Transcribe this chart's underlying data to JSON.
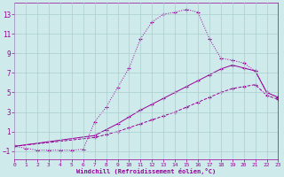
{
  "background_color": "#ceeaea",
  "grid_color": "#aacece",
  "line_color": "#990099",
  "xlim": [
    0,
    23
  ],
  "ylim": [
    -1.8,
    14.2
  ],
  "xticks": [
    0,
    1,
    2,
    3,
    4,
    5,
    6,
    7,
    8,
    9,
    10,
    11,
    12,
    13,
    14,
    15,
    16,
    17,
    18,
    19,
    20,
    21,
    22,
    23
  ],
  "yticks": [
    -1,
    1,
    3,
    5,
    7,
    9,
    11,
    13
  ],
  "xlabel": "Windchill (Refroidissement éolien,°C)",
  "line1_x": [
    0,
    1,
    2,
    3,
    4,
    5,
    6,
    7,
    8,
    9,
    10,
    11,
    12,
    13,
    14,
    15,
    16,
    17,
    18,
    19,
    20,
    21,
    22,
    23
  ],
  "line1_y": [
    -0.5,
    -0.7,
    -0.9,
    -0.9,
    -0.9,
    -0.9,
    -0.8,
    2.0,
    3.5,
    5.5,
    7.5,
    10.5,
    12.2,
    13.0,
    13.2,
    13.5,
    13.2,
    10.5,
    8.5,
    8.3,
    8.0,
    7.2,
    5.0,
    4.5
  ],
  "line2_x": [
    0,
    7,
    8,
    9,
    10,
    11,
    12,
    13,
    14,
    15,
    16,
    17,
    18,
    19,
    20,
    21,
    22,
    23
  ],
  "line2_y": [
    -0.5,
    0.6,
    1.2,
    1.8,
    2.5,
    3.2,
    3.8,
    4.4,
    5.0,
    5.6,
    6.2,
    6.8,
    7.4,
    7.8,
    7.5,
    7.2,
    5.0,
    4.5
  ],
  "line3_x": [
    0,
    7,
    8,
    9,
    10,
    11,
    12,
    13,
    14,
    15,
    16,
    17,
    18,
    19,
    20,
    21,
    22,
    23
  ],
  "line3_y": [
    -0.5,
    0.4,
    0.7,
    1.0,
    1.4,
    1.8,
    2.2,
    2.6,
    3.0,
    3.5,
    4.0,
    4.5,
    5.0,
    5.4,
    5.6,
    5.8,
    4.7,
    4.3
  ]
}
